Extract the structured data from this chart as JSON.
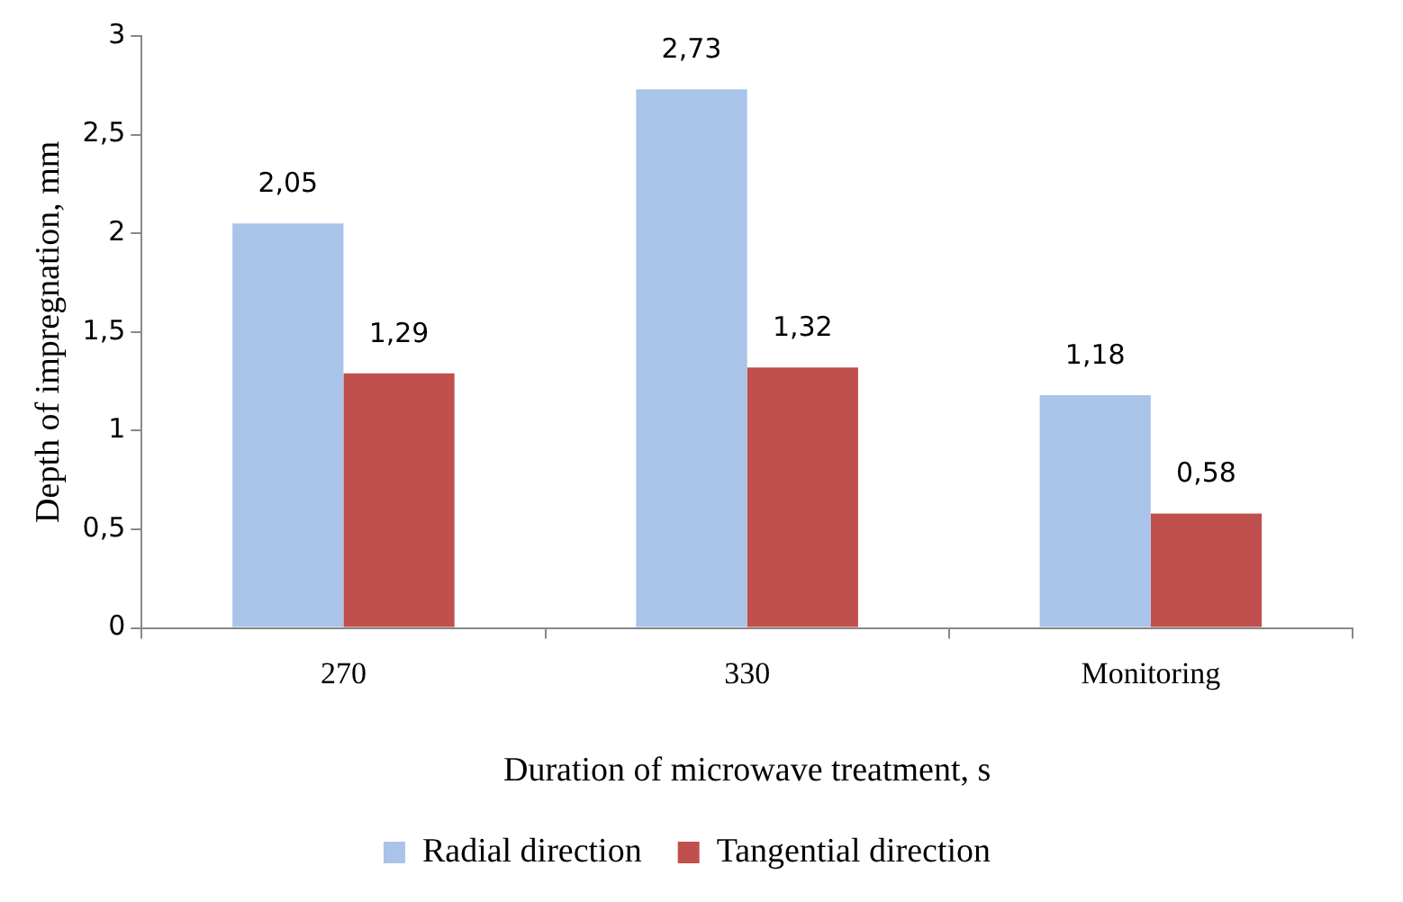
{
  "chart_data": {
    "type": "bar",
    "xlabel": "Duration of microwave treatment, s",
    "ylabel": "Depth of impregnation, mm",
    "categories": [
      "270",
      "330",
      "Monitoring"
    ],
    "series": [
      {
        "name": "Radial direction",
        "color": "#a9c4e8",
        "values": [
          2.05,
          2.73,
          1.18
        ],
        "value_labels": [
          "2,05",
          "2,73",
          "1,18"
        ]
      },
      {
        "name": "Tangential direction",
        "color": "#c0504d",
        "values": [
          1.29,
          1.32,
          0.58
        ],
        "value_labels": [
          "1,29",
          "1,32",
          "0,58"
        ]
      }
    ],
    "ylim": [
      0,
      3
    ],
    "yticks": [
      0,
      {
        "value": 0.5,
        "label": "0,5"
      },
      1,
      {
        "value": 1.5,
        "label": "1,5"
      },
      2,
      {
        "value": 2.5,
        "label": "2,5"
      },
      3
    ],
    "grid": false,
    "legend": "bottom"
  }
}
